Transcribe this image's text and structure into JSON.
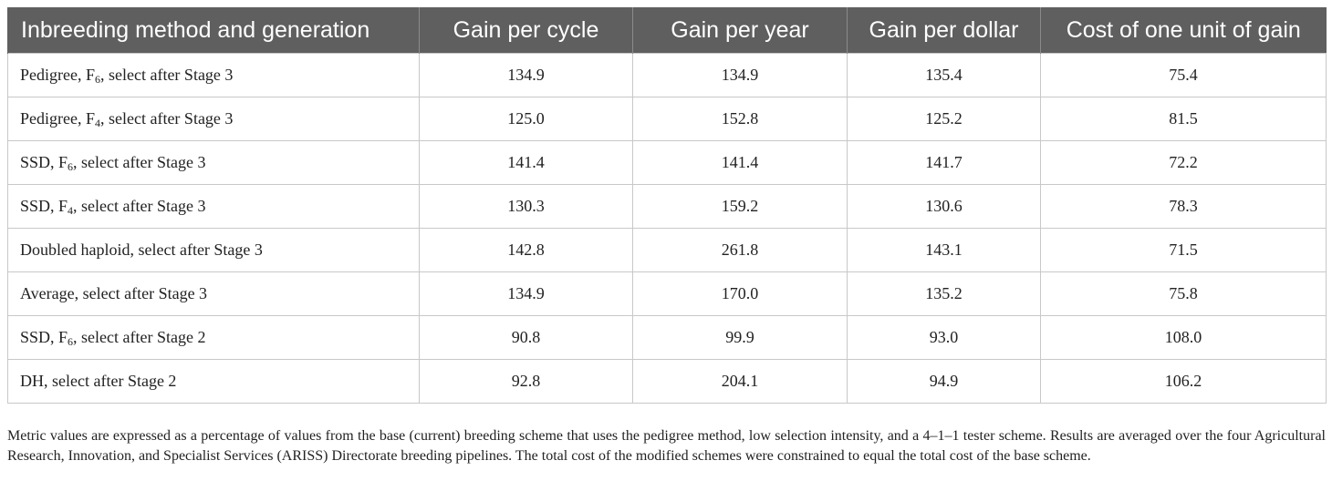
{
  "table": {
    "headers": [
      "Inbreeding method and generation",
      "Gain per cycle",
      "Gain per year",
      "Gain per dollar",
      "Cost of one unit of gain"
    ],
    "rows": [
      {
        "method": "Pedigree, F",
        "gen": "6",
        "rest": ", select after Stage 3",
        "cells": [
          "134.9",
          "134.9",
          "135.4",
          "75.4"
        ]
      },
      {
        "method": "Pedigree, F",
        "gen": "4",
        "rest": ", select after Stage 3",
        "cells": [
          "125.0",
          "152.8",
          "125.2",
          "81.5"
        ]
      },
      {
        "method": "SSD, F",
        "gen": "6",
        "rest": ", select after Stage 3",
        "cells": [
          "141.4",
          "141.4",
          "141.7",
          "72.2"
        ]
      },
      {
        "method": "SSD, F",
        "gen": "4",
        "rest": ", select after Stage 3",
        "cells": [
          "130.3",
          "159.2",
          "130.6",
          "78.3"
        ]
      },
      {
        "method": "Doubled haploid, select after Stage 3",
        "gen": "",
        "rest": "",
        "cells": [
          "142.8",
          "261.8",
          "143.1",
          "71.5"
        ]
      },
      {
        "method": "Average, select after Stage 3",
        "gen": "",
        "rest": "",
        "cells": [
          "134.9",
          "170.0",
          "135.2",
          "75.8"
        ]
      },
      {
        "method": "SSD, F",
        "gen": "6",
        "rest": ", select after Stage 2",
        "cells": [
          "90.8",
          "99.9",
          "93.0",
          "108.0"
        ]
      },
      {
        "method": "DH, select after Stage 2",
        "gen": "",
        "rest": "",
        "cells": [
          "92.8",
          "204.1",
          "94.9",
          "106.2"
        ]
      }
    ]
  },
  "footnote": "Metric values are expressed as a percentage of values from the base (current) breeding scheme that uses the pedigree method, low selection intensity, and a 4–1–1 tester scheme. Results are averaged over the four Agricultural Research, Innovation, and Specialist Services (ARISS) Directorate breeding pipelines. The total cost of the modified schemes were constrained to equal the total cost of the base scheme.",
  "colors": {
    "header_bg": "#5f5f5f",
    "header_text": "#ffffff",
    "border": "#c8c8c8",
    "text": "#222222"
  }
}
